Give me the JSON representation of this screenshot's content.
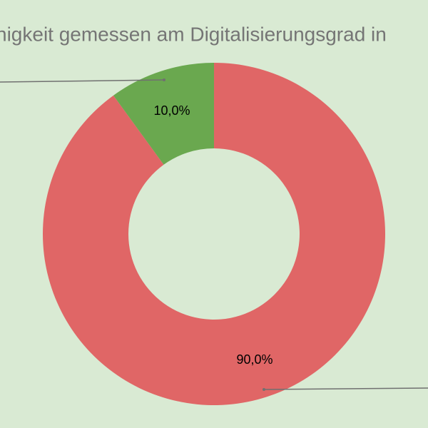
{
  "chart_data": {
    "type": "donut",
    "title": "nigkeit gemessen am Digitalisierungsgrad in",
    "values": [
      10,
      90
    ],
    "value_labels": [
      "10,0%",
      "90,0%"
    ],
    "colors": [
      "#6aa84f",
      "#e06666"
    ]
  }
}
